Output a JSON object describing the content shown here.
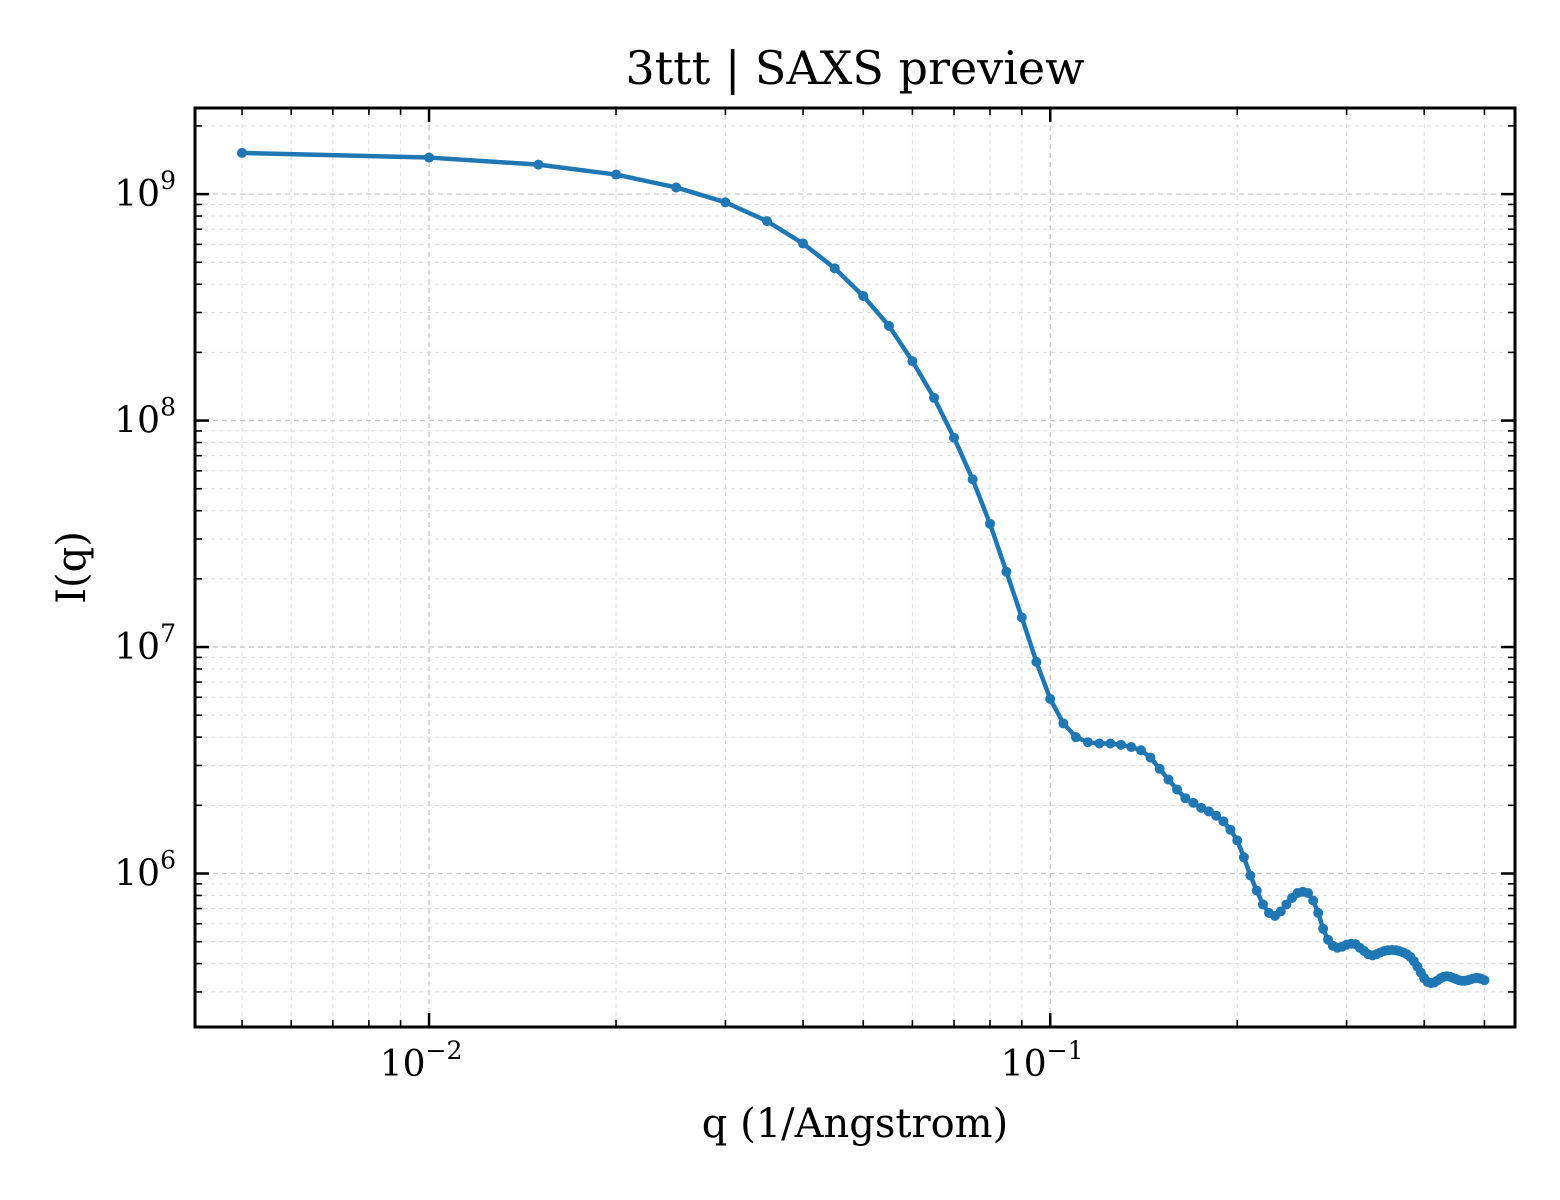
{
  "chart_data": {
    "type": "line",
    "title": "3ttt | SAXS preview",
    "xlabel": "q (1/Angstrom)",
    "ylabel": "I(q)",
    "xscale": "log",
    "yscale": "log",
    "xlim": [
      0.0042,
      0.56
    ],
    "ylim": [
      210000,
      2400000000
    ],
    "grid": "on",
    "legend": "none",
    "line_color": "#1f77b4",
    "marker": "circle",
    "x_ticks": [
      {
        "value": 0.01,
        "base": "10",
        "exp": "−2"
      },
      {
        "value": 0.1,
        "base": "10",
        "exp": "−1"
      }
    ],
    "y_ticks": [
      {
        "value": 1000000,
        "base": "10",
        "exp": "6"
      },
      {
        "value": 10000000,
        "base": "10",
        "exp": "7"
      },
      {
        "value": 100000000,
        "base": "10",
        "exp": "8"
      },
      {
        "value": 1000000000,
        "base": "10",
        "exp": "9"
      }
    ],
    "series": [
      {
        "x": [
          0.005,
          0.01,
          0.015,
          0.02,
          0.025,
          0.03,
          0.035,
          0.04,
          0.045,
          0.05,
          0.055,
          0.06,
          0.065,
          0.07,
          0.075,
          0.08,
          0.085,
          0.09,
          0.095,
          0.1,
          0.105,
          0.11,
          0.115,
          0.12,
          0.125,
          0.13,
          0.135,
          0.14,
          0.145,
          0.15,
          0.155,
          0.16,
          0.165,
          0.17,
          0.175,
          0.18,
          0.185,
          0.19,
          0.195,
          0.2,
          0.205,
          0.21,
          0.215,
          0.22,
          0.225,
          0.23,
          0.235,
          0.24,
          0.245,
          0.25,
          0.255,
          0.26,
          0.265,
          0.27,
          0.275,
          0.28,
          0.285,
          0.29,
          0.295,
          0.3,
          0.305,
          0.31,
          0.315,
          0.32,
          0.325,
          0.33,
          0.335,
          0.34,
          0.345,
          0.35,
          0.355,
          0.36,
          0.365,
          0.37,
          0.375,
          0.38,
          0.385,
          0.39,
          0.395,
          0.4,
          0.405,
          0.41,
          0.415,
          0.42,
          0.425,
          0.43,
          0.435,
          0.44,
          0.445,
          0.45,
          0.455,
          0.46,
          0.465,
          0.47,
          0.475,
          0.48,
          0.485,
          0.49,
          0.495,
          0.5
        ],
        "y": [
          1520000000,
          1450000000,
          1350000000,
          1220000000,
          1070000000,
          920000000,
          760000000,
          605000000,
          470000000,
          355000000,
          262000000,
          183000000,
          126000000,
          84000000,
          55000000,
          35000000,
          21500000,
          13500000,
          8600000,
          5900000,
          4600000,
          4000000,
          3800000,
          3750000,
          3750000,
          3700000,
          3620000,
          3500000,
          3250000,
          2900000,
          2600000,
          2350000,
          2150000,
          2050000,
          1950000,
          1880000,
          1800000,
          1700000,
          1560000,
          1400000,
          1180000,
          980000,
          840000,
          730000,
          670000,
          650000,
          680000,
          730000,
          780000,
          820000,
          830000,
          820000,
          760000,
          670000,
          570000,
          510000,
          480000,
          470000,
          475000,
          485000,
          490000,
          488000,
          470000,
          455000,
          440000,
          435000,
          440000,
          448000,
          455000,
          458000,
          460000,
          458000,
          454000,
          448000,
          440000,
          428000,
          410000,
          388000,
          365000,
          345000,
          332000,
          328000,
          330000,
          337000,
          345000,
          350000,
          352000,
          350000,
          346000,
          342000,
          338000,
          336000,
          336000,
          338000,
          341000,
          344000,
          346000,
          345000,
          342000,
          338000
        ]
      }
    ]
  }
}
